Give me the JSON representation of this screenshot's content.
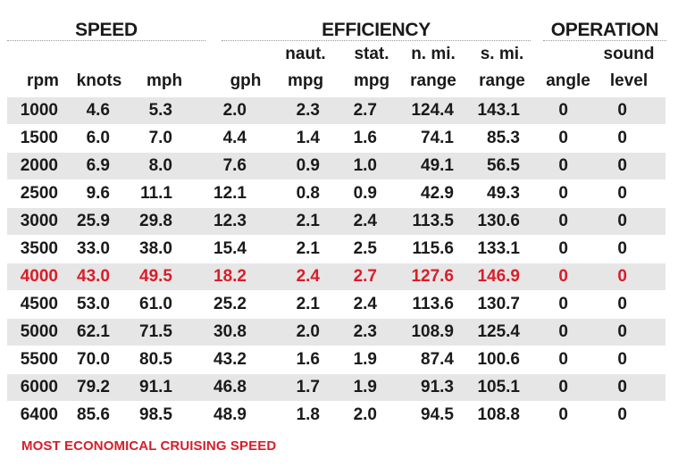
{
  "groups": {
    "speed": "SPEED",
    "efficiency": "EFFICIENCY",
    "operation": "OPERATION"
  },
  "columns": [
    {
      "top": "",
      "bottom": "rpm"
    },
    {
      "top": "",
      "bottom": "knots"
    },
    {
      "top": "",
      "bottom": "mph"
    },
    {
      "top": "",
      "bottom": "gph"
    },
    {
      "top": "naut.",
      "bottom": "mpg"
    },
    {
      "top": "stat.",
      "bottom": "mpg"
    },
    {
      "top": "n. mi.",
      "bottom": "range"
    },
    {
      "top": "s. mi.",
      "bottom": "range"
    },
    {
      "top": "",
      "bottom": "angle"
    },
    {
      "top": "sound",
      "bottom": "level"
    }
  ],
  "rows": [
    [
      "1000",
      "4.6",
      "5.3",
      "2.0",
      "2.3",
      "2.7",
      "124.4",
      "143.1",
      "0",
      "0"
    ],
    [
      "1500",
      "6.0",
      "7.0",
      "4.4",
      "1.4",
      "1.6",
      "74.1",
      "85.3",
      "0",
      "0"
    ],
    [
      "2000",
      "6.9",
      "8.0",
      "7.6",
      "0.9",
      "1.0",
      "49.1",
      "56.5",
      "0",
      "0"
    ],
    [
      "2500",
      "9.6",
      "11.1",
      "12.1",
      "0.8",
      "0.9",
      "42.9",
      "49.3",
      "0",
      "0"
    ],
    [
      "3000",
      "25.9",
      "29.8",
      "12.3",
      "2.1",
      "2.4",
      "113.5",
      "130.6",
      "0",
      "0"
    ],
    [
      "3500",
      "33.0",
      "38.0",
      "15.4",
      "2.1",
      "2.5",
      "115.6",
      "133.1",
      "0",
      "0"
    ],
    [
      "4000",
      "43.0",
      "49.5",
      "18.2",
      "2.4",
      "2.7",
      "127.6",
      "146.9",
      "0",
      "0"
    ],
    [
      "4500",
      "53.0",
      "61.0",
      "25.2",
      "2.1",
      "2.4",
      "113.6",
      "130.7",
      "0",
      "0"
    ],
    [
      "5000",
      "62.1",
      "71.5",
      "30.8",
      "2.0",
      "2.3",
      "108.9",
      "125.4",
      "0",
      "0"
    ],
    [
      "5500",
      "70.0",
      "80.5",
      "43.2",
      "1.6",
      "1.9",
      "87.4",
      "100.6",
      "0",
      "0"
    ],
    [
      "6000",
      "79.2",
      "91.1",
      "46.8",
      "1.7",
      "1.9",
      "91.3",
      "105.1",
      "0",
      "0"
    ],
    [
      "6400",
      "85.6",
      "98.5",
      "48.9",
      "1.8",
      "2.0",
      "94.5",
      "108.8",
      "0",
      "0"
    ]
  ],
  "highlight_row_index": 6,
  "footnote": "MOST ECONOMICAL CRUISING SPEED",
  "colors": {
    "highlight": "#d81e2a",
    "row_shade": "#e6e6e6",
    "text": "#1a1a1a"
  }
}
